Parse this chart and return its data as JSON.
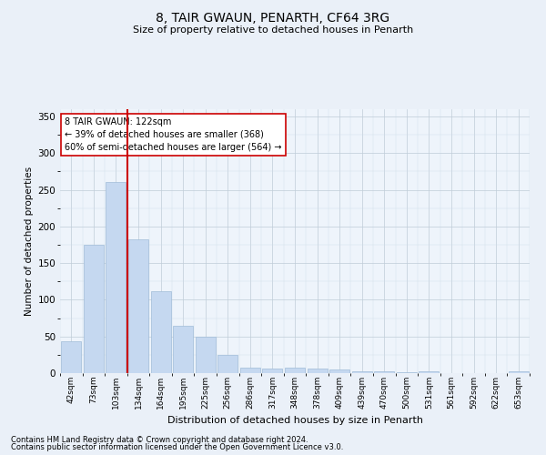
{
  "title1": "8, TAIR GWAUN, PENARTH, CF64 3RG",
  "title2": "Size of property relative to detached houses in Penarth",
  "xlabel": "Distribution of detached houses by size in Penarth",
  "ylabel": "Number of detached properties",
  "bin_labels": [
    "42sqm",
    "73sqm",
    "103sqm",
    "134sqm",
    "164sqm",
    "195sqm",
    "225sqm",
    "256sqm",
    "286sqm",
    "317sqm",
    "348sqm",
    "378sqm",
    "409sqm",
    "439sqm",
    "470sqm",
    "500sqm",
    "531sqm",
    "561sqm",
    "592sqm",
    "622sqm",
    "653sqm"
  ],
  "bar_values": [
    44,
    175,
    261,
    183,
    112,
    65,
    50,
    25,
    8,
    6,
    8,
    6,
    5,
    3,
    2,
    1,
    2,
    0,
    0,
    0,
    2
  ],
  "bar_color": "#c5d8f0",
  "bar_edgecolor": "#a0bcd8",
  "vline_x": 2.5,
  "vline_color": "#cc0000",
  "annotation_text": "8 TAIR GWAUN: 122sqm\n← 39% of detached houses are smaller (368)\n60% of semi-detached houses are larger (564) →",
  "annotation_box_color": "#ffffff",
  "annotation_box_edgecolor": "#cc0000",
  "ylim": [
    0,
    360
  ],
  "yticks": [
    0,
    50,
    100,
    150,
    200,
    250,
    300,
    350
  ],
  "footer1": "Contains HM Land Registry data © Crown copyright and database right 2024.",
  "footer2": "Contains public sector information licensed under the Open Government Licence v3.0.",
  "bg_color": "#eaf0f8",
  "plot_bg_color": "#eef4fb"
}
